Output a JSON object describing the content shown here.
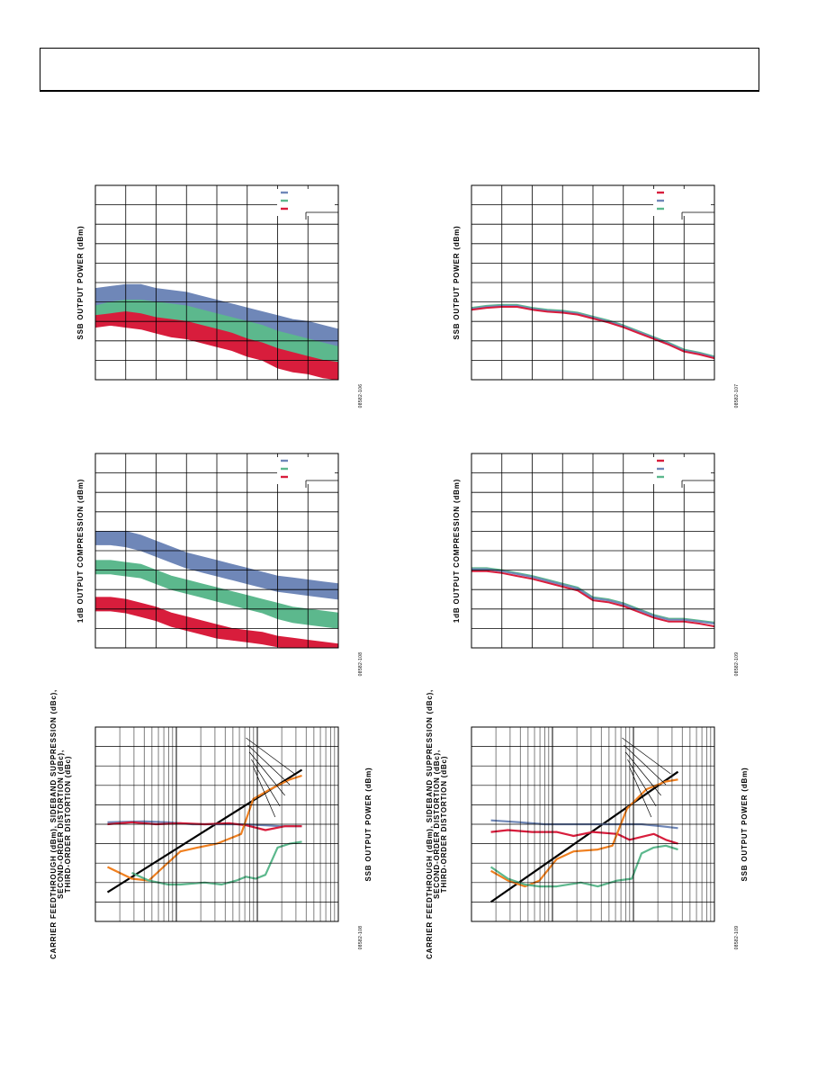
{
  "page": {
    "header_text": ""
  },
  "chart_data": [
    {
      "id": "c1",
      "type": "line",
      "ylabel": "SSB OUTPUT POWER (dBm)",
      "fig_id": "08582-106",
      "colors": {
        "a": "#6f87b8",
        "b": "#5cb88d",
        "c": "#d81d3c"
      },
      "legend": {
        "placement": "top-right",
        "colors": [
          "#6f87b8",
          "#5cb88d",
          "#d81d3c"
        ]
      },
      "grid": true,
      "xlim": [
        0,
        8
      ],
      "ylim": [
        0,
        10
      ],
      "x": [
        0,
        0.5,
        1,
        1.5,
        2,
        2.5,
        3,
        3.5,
        4,
        4.5,
        5,
        5.5,
        6,
        6.5,
        7,
        7.5,
        8
      ],
      "bands": [
        {
          "color": "#6f87b8",
          "upper": [
            4.7,
            4.8,
            4.9,
            4.9,
            4.7,
            4.6,
            4.5,
            4.3,
            4.1,
            3.9,
            3.7,
            3.5,
            3.3,
            3.1,
            3.0,
            2.8,
            2.6
          ],
          "lower": [
            3.8,
            4.0,
            4.1,
            4.1,
            4.0,
            3.9,
            3.8,
            3.6,
            3.4,
            3.2,
            3.0,
            2.8,
            2.5,
            2.3,
            2.1,
            1.9,
            1.7
          ]
        },
        {
          "color": "#5cb88d",
          "upper": [
            3.8,
            4.0,
            4.1,
            4.1,
            4.0,
            3.9,
            3.8,
            3.6,
            3.4,
            3.2,
            3.0,
            2.8,
            2.5,
            2.3,
            2.1,
            1.9,
            1.7
          ],
          "lower": [
            3.3,
            3.4,
            3.5,
            3.4,
            3.2,
            3.1,
            3.0,
            2.8,
            2.6,
            2.4,
            2.1,
            1.9,
            1.6,
            1.4,
            1.2,
            1.0,
            0.9
          ]
        },
        {
          "color": "#d81d3c",
          "upper": [
            3.3,
            3.4,
            3.5,
            3.4,
            3.2,
            3.1,
            3.0,
            2.8,
            2.6,
            2.4,
            2.1,
            1.9,
            1.6,
            1.4,
            1.2,
            1.0,
            0.9
          ],
          "lower": [
            2.7,
            2.8,
            2.7,
            2.6,
            2.4,
            2.2,
            2.1,
            1.9,
            1.7,
            1.5,
            1.2,
            1.0,
            0.6,
            0.4,
            0.3,
            0.1,
            0.0
          ]
        }
      ],
      "series": []
    },
    {
      "id": "c2",
      "type": "line",
      "ylabel": "SSB OUTPUT POWER (dBm)",
      "fig_id": "08582-107",
      "colors": {
        "a": "#d81d3c",
        "b": "#6f87b8",
        "c": "#5cb88d"
      },
      "legend": {
        "placement": "top-right",
        "colors": [
          "#d81d3c",
          "#6f87b8",
          "#5cb88d"
        ]
      },
      "grid": true,
      "xlim": [
        0,
        8
      ],
      "ylim": [
        0,
        10
      ],
      "x": [
        0,
        0.5,
        1,
        1.5,
        2,
        2.5,
        3,
        3.5,
        4,
        4.5,
        5,
        5.5,
        6,
        6.5,
        7,
        7.5,
        8
      ],
      "bands": [],
      "series": [
        {
          "color": "#5cb88d",
          "values": [
            3.7,
            3.8,
            3.85,
            3.85,
            3.7,
            3.6,
            3.55,
            3.45,
            3.25,
            3.05,
            2.8,
            2.5,
            2.2,
            1.9,
            1.55,
            1.4,
            1.2
          ]
        },
        {
          "color": "#6f87b8",
          "values": [
            3.65,
            3.75,
            3.8,
            3.8,
            3.65,
            3.55,
            3.5,
            3.4,
            3.2,
            3.0,
            2.75,
            2.45,
            2.15,
            1.85,
            1.5,
            1.35,
            1.15
          ]
        },
        {
          "color": "#d81d3c",
          "values": [
            3.6,
            3.7,
            3.75,
            3.75,
            3.6,
            3.5,
            3.45,
            3.35,
            3.15,
            2.95,
            2.7,
            2.4,
            2.1,
            1.8,
            1.45,
            1.3,
            1.1
          ]
        }
      ]
    },
    {
      "id": "c3",
      "type": "line",
      "ylabel": "1dB OUTPUT COMPRESSION (dBm)",
      "fig_id": "08582-108",
      "colors": {
        "a": "#6f87b8",
        "b": "#5cb88d",
        "c": "#d81d3c"
      },
      "legend": {
        "placement": "top-right",
        "colors": [
          "#6f87b8",
          "#5cb88d",
          "#d81d3c"
        ]
      },
      "grid": true,
      "xlim": [
        0,
        8
      ],
      "ylim": [
        0,
        10
      ],
      "x": [
        0,
        0.5,
        1,
        1.5,
        2,
        2.5,
        3,
        3.5,
        4,
        4.5,
        5,
        5.5,
        6,
        6.5,
        7,
        7.5,
        8
      ],
      "bands": [
        {
          "color": "#6f87b8",
          "upper": [
            6.0,
            6.0,
            6.0,
            5.8,
            5.5,
            5.2,
            4.9,
            4.7,
            4.5,
            4.3,
            4.1,
            3.9,
            3.7,
            3.6,
            3.5,
            3.4,
            3.3
          ],
          "lower": [
            5.3,
            5.3,
            5.2,
            5.0,
            4.7,
            4.4,
            4.1,
            3.9,
            3.7,
            3.5,
            3.3,
            3.1,
            2.9,
            2.8,
            2.7,
            2.6,
            2.5
          ]
        },
        {
          "color": "#5cb88d",
          "upper": [
            4.5,
            4.5,
            4.4,
            4.3,
            4.0,
            3.7,
            3.5,
            3.3,
            3.1,
            2.9,
            2.7,
            2.5,
            2.3,
            2.1,
            2.0,
            1.9,
            1.8
          ]
        },
        {
          "color": "#d81d3c",
          "upper": [
            2.6,
            2.6,
            2.5,
            2.3,
            2.1,
            1.8,
            1.6,
            1.4,
            1.2,
            1.0,
            0.9,
            0.8,
            0.6,
            0.5,
            0.4,
            0.3,
            0.2
          ],
          "lower": [
            1.9,
            1.9,
            1.8,
            1.6,
            1.4,
            1.1,
            0.9,
            0.7,
            0.5,
            0.4,
            0.3,
            0.2,
            0.05,
            0.0,
            -0.1,
            -0.2,
            -0.3
          ]
        }
      ],
      "band_lowers": {
        "1": [
          3.8,
          3.8,
          3.7,
          3.6,
          3.3,
          3.0,
          2.8,
          2.6,
          2.4,
          2.2,
          2.0,
          1.8,
          1.5,
          1.3,
          1.2,
          1.1,
          1.0
        ]
      },
      "series": []
    },
    {
      "id": "c4",
      "type": "line",
      "ylabel": "1dB OUTPUT COMPRESSION (dBm)",
      "fig_id": "08582-109",
      "colors": {
        "a": "#d81d3c",
        "b": "#6f87b8",
        "c": "#5cb88d"
      },
      "legend": {
        "placement": "top-right",
        "colors": [
          "#d81d3c",
          "#6f87b8",
          "#5cb88d"
        ]
      },
      "grid": true,
      "xlim": [
        0,
        8
      ],
      "ylim": [
        0,
        10
      ],
      "x": [
        0,
        0.5,
        1,
        1.5,
        2,
        2.5,
        3,
        3.5,
        4,
        4.5,
        5,
        5.5,
        6,
        6.5,
        7,
        7.5,
        8
      ],
      "bands": [],
      "series": [
        {
          "color": "#5cb88d",
          "values": [
            4.1,
            4.1,
            4.0,
            3.85,
            3.7,
            3.5,
            3.3,
            3.1,
            2.6,
            2.5,
            2.3,
            2.0,
            1.7,
            1.5,
            1.5,
            1.4,
            1.3
          ]
        },
        {
          "color": "#6f87b8",
          "values": [
            4.05,
            4.05,
            3.95,
            3.8,
            3.65,
            3.45,
            3.25,
            3.05,
            2.55,
            2.45,
            2.25,
            1.95,
            1.65,
            1.45,
            1.45,
            1.35,
            1.25
          ]
        },
        {
          "color": "#d81d3c",
          "values": [
            3.95,
            3.95,
            3.85,
            3.7,
            3.55,
            3.35,
            3.15,
            2.95,
            2.45,
            2.35,
            2.15,
            1.85,
            1.55,
            1.35,
            1.35,
            1.25,
            1.1
          ]
        }
      ]
    },
    {
      "id": "c5",
      "type": "line",
      "ylabel": "CARRIER FEEDTHROUGH (dBm), SIDEBAND SUPPRESSION (dBc), SECOND-ORDER DISTORTION (dBc), THIRD-ORDER DISTORTION (dBc)",
      "ylabel_lines": [
        "CARRIER FEEDTHROUGH (dBm), SIDEBAND SUPPRESSION (dBc),",
        "SECOND-ORDER DISTORTION (dBc),",
        "THIRD-ORDER DISTORTION (dBc)"
      ],
      "ylabel2": "SSB OUTPUT POWER (dBm)",
      "fig_id": "08582-108",
      "xscale": "log",
      "grid": true,
      "xlim": [
        0,
        1
      ],
      "ylim": [
        0,
        10
      ],
      "series": [
        {
          "name": "black",
          "color": "#000000",
          "x": [
            0.05,
            0.85
          ],
          "values": [
            1.5,
            7.8
          ]
        },
        {
          "name": "blue",
          "color": "#6f87b8",
          "x": [
            0.05,
            0.2,
            0.3,
            0.4,
            0.5,
            0.6,
            0.7,
            0.76,
            0.85
          ],
          "values": [
            5.1,
            5.15,
            5.1,
            5.0,
            5.0,
            5.0,
            4.95,
            4.9,
            4.9
          ]
        },
        {
          "name": "red",
          "color": "#d81d3c",
          "x": [
            0.05,
            0.15,
            0.25,
            0.35,
            0.45,
            0.55,
            0.62,
            0.7,
            0.78,
            0.85
          ],
          "values": [
            5.0,
            5.1,
            5.0,
            5.05,
            5.0,
            5.05,
            4.95,
            4.7,
            4.9,
            4.9
          ]
        },
        {
          "name": "orange",
          "color": "#f08020",
          "x": [
            0.05,
            0.15,
            0.22,
            0.28,
            0.35,
            0.42,
            0.5,
            0.6,
            0.65,
            0.72,
            0.8,
            0.85
          ],
          "values": [
            2.8,
            2.2,
            2.1,
            2.8,
            3.6,
            3.8,
            4.0,
            4.5,
            6.3,
            6.8,
            7.3,
            7.5
          ]
        },
        {
          "name": "green",
          "color": "#5cb88d",
          "x": [
            0.15,
            0.22,
            0.3,
            0.35,
            0.45,
            0.52,
            0.58,
            0.62,
            0.66,
            0.7,
            0.75,
            0.8,
            0.85
          ],
          "values": [
            2.5,
            2.1,
            1.9,
            1.9,
            2.0,
            1.9,
            2.1,
            2.3,
            2.2,
            2.4,
            3.8,
            4.0,
            4.1
          ]
        }
      ]
    },
    {
      "id": "c6",
      "type": "line",
      "ylabel": "CARRIER FEEDTHROUGH (dBm), SIDEBAND SUPPRESSION (dBc), SECOND-ORDER DISTORTION (dBc), THIRD-ORDER DISTORTION (dBc)",
      "ylabel_lines": [
        "CARRIER FEEDTHROUGH (dBm), SIDEBAND SUPPRESSION (dBc),",
        "SECOND-ORDER DISTORTION (dBc),",
        "THIRD-ORDER DISTORTION (dBc)"
      ],
      "ylabel2": "SSB OUTPUT POWER (dBm)",
      "fig_id": "08582-109",
      "xscale": "log",
      "grid": true,
      "xlim": [
        0,
        1
      ],
      "ylim": [
        0,
        10
      ],
      "series": [
        {
          "name": "black",
          "color": "#000000",
          "x": [
            0.08,
            0.85
          ],
          "values": [
            1.0,
            7.7
          ]
        },
        {
          "name": "blue",
          "color": "#6f87b8",
          "x": [
            0.08,
            0.2,
            0.3,
            0.4,
            0.5,
            0.6,
            0.7,
            0.78,
            0.85
          ],
          "values": [
            5.2,
            5.1,
            5.0,
            5.0,
            5.0,
            5.0,
            5.0,
            4.9,
            4.8
          ]
        },
        {
          "name": "red",
          "color": "#d81d3c",
          "x": [
            0.08,
            0.15,
            0.25,
            0.35,
            0.42,
            0.5,
            0.6,
            0.65,
            0.75,
            0.8,
            0.85
          ],
          "values": [
            4.6,
            4.7,
            4.6,
            4.6,
            4.4,
            4.6,
            4.5,
            4.2,
            4.5,
            4.2,
            4.0
          ]
        },
        {
          "name": "orange",
          "color": "#f08020",
          "x": [
            0.08,
            0.15,
            0.22,
            0.28,
            0.35,
            0.42,
            0.52,
            0.58,
            0.64,
            0.72,
            0.8,
            0.85
          ],
          "values": [
            2.6,
            2.1,
            1.8,
            2.1,
            3.2,
            3.6,
            3.7,
            3.9,
            5.8,
            6.8,
            7.2,
            7.3
          ]
        },
        {
          "name": "green",
          "color": "#5cb88d",
          "x": [
            0.08,
            0.15,
            0.22,
            0.28,
            0.35,
            0.45,
            0.52,
            0.6,
            0.66,
            0.7,
            0.75,
            0.8,
            0.85
          ],
          "values": [
            2.8,
            2.2,
            1.9,
            1.8,
            1.8,
            2.0,
            1.8,
            2.1,
            2.2,
            3.5,
            3.8,
            3.9,
            3.7
          ]
        }
      ]
    }
  ]
}
